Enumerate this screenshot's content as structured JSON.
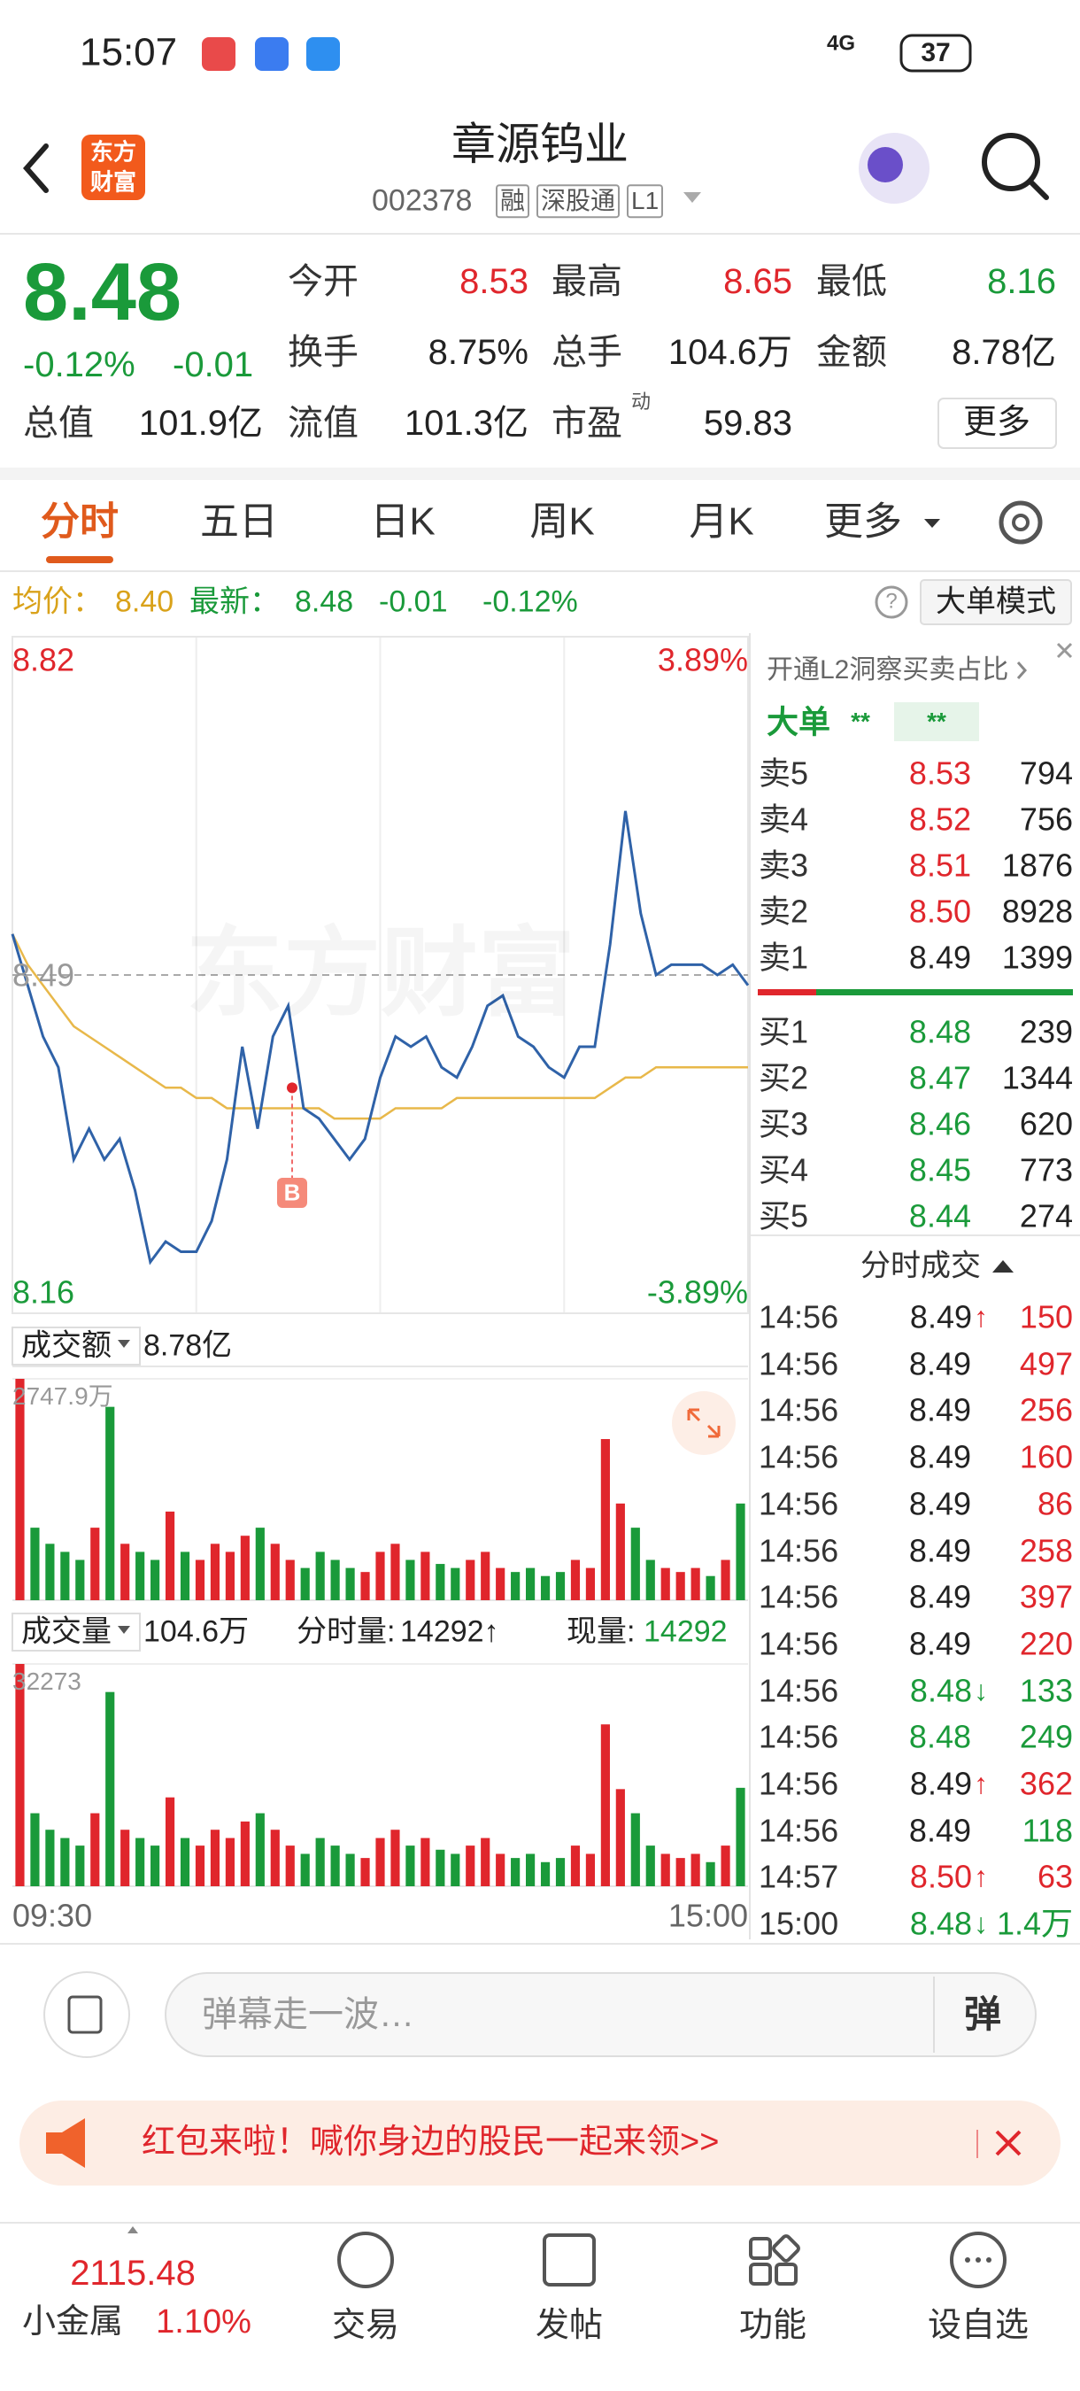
{
  "status": {
    "time": "15:07",
    "network": "4G",
    "battery": "37"
  },
  "header": {
    "logo": [
      "东方",
      "财富"
    ],
    "title": "章源钨业",
    "code": "002378",
    "tags": [
      "融",
      "深股通",
      "L1"
    ]
  },
  "quote": {
    "price": "8.48",
    "change_pct": "-0.12%",
    "change": "-0.01",
    "fields": [
      [
        {
          "label": "今开",
          "value": "8.53",
          "color": "#e0262c"
        },
        {
          "label": "最高",
          "value": "8.65",
          "color": "#e0262c"
        },
        {
          "label": "最低",
          "value": "8.16",
          "color": "#1a9a3a"
        }
      ],
      [
        {
          "label": "换手",
          "value": "8.75%"
        },
        {
          "label": "总手",
          "value": "104.6万"
        },
        {
          "label": "金额",
          "value": "8.78亿"
        }
      ],
      [
        {
          "label": "总值",
          "value": "101.9亿"
        },
        {
          "label": "流值",
          "value": "101.3亿"
        },
        {
          "label": "市盈",
          "sup": "动",
          "value": "59.83"
        }
      ]
    ],
    "more": "更多"
  },
  "tabs": {
    "items": [
      "分时",
      "五日",
      "日K",
      "周K",
      "月K",
      "更多"
    ],
    "active": 0
  },
  "info": {
    "avg_label": "均价：",
    "avg": "8.40",
    "last_label": "最新：",
    "last": "8.48",
    "change": "-0.01",
    "change_pct": "-0.12%",
    "help": "?",
    "mode": "大单模式"
  },
  "chart_data": [
    {
      "type": "line",
      "watermark": "东方财富",
      "ylim": [
        8.16,
        8.82
      ],
      "yticks": [
        8.82,
        8.49,
        8.16
      ],
      "y2lim": [
        -3.89,
        3.89
      ],
      "y2ticks": [
        {
          "value": 3.89,
          "label": "3.89%"
        },
        {
          "value": -3.89,
          "label": "-3.89%"
        }
      ],
      "series": [
        {
          "color": "#2f62a8",
          "values": [
            8.53,
            8.48,
            8.43,
            8.4,
            8.31,
            8.34,
            8.31,
            8.33,
            8.28,
            8.21,
            8.23,
            8.22,
            8.22,
            8.25,
            8.31,
            8.42,
            8.34,
            8.43,
            8.46,
            8.36,
            8.35,
            8.33,
            8.31,
            8.33,
            8.39,
            8.43,
            8.42,
            8.43,
            8.4,
            8.39,
            8.42,
            8.46,
            8.47,
            8.43,
            8.42,
            8.4,
            8.39,
            8.42,
            8.42,
            8.52,
            8.65,
            8.55,
            8.49,
            8.5,
            8.5,
            8.5,
            8.49,
            8.5,
            8.48
          ]
        },
        {
          "color": "#e8b84a",
          "values": [
            8.53,
            8.5,
            8.48,
            8.46,
            8.44,
            8.43,
            8.42,
            8.41,
            8.4,
            8.39,
            8.38,
            8.38,
            8.37,
            8.37,
            8.36,
            8.36,
            8.36,
            8.36,
            8.36,
            8.36,
            8.36,
            8.35,
            8.35,
            8.35,
            8.35,
            8.36,
            8.36,
            8.36,
            8.36,
            8.37,
            8.37,
            8.37,
            8.37,
            8.37,
            8.37,
            8.37,
            8.37,
            8.37,
            8.37,
            8.38,
            8.39,
            8.39,
            8.4,
            8.4,
            8.4,
            8.4,
            8.4,
            8.4,
            8.4
          ]
        }
      ],
      "annotations": [
        {
          "text": "B",
          "value": 8.38
        }
      ]
    },
    {
      "type": "bar",
      "title": "成交额",
      "total": "8.78亿",
      "up_color": "#e0262c",
      "down_color": "#1a9a3a",
      "ylim": [
        0,
        2747.9
      ],
      "yticks": [
        {
          "value": 2747.9,
          "label": "2747.9万"
        }
      ],
      "values": [
        2747.9,
        900,
        700,
        600,
        500,
        900,
        2400,
        700,
        600,
        500,
        1100,
        600,
        500,
        700,
        600,
        800,
        900,
        700,
        500,
        400,
        600,
        500,
        400,
        350,
        600,
        700,
        500,
        600,
        450,
        400,
        500,
        600,
        400,
        350,
        400,
        300,
        350,
        500,
        400,
        2000,
        1200,
        900,
        500,
        400,
        350,
        400,
        300,
        500,
        1200
      ]
    },
    {
      "type": "bar",
      "title": "成交量",
      "total": "104.6万",
      "minute_volume_label": "分时量:",
      "minute_volume": "14292↑",
      "current_label": "现量:",
      "current": "14292",
      "up_color": "#e0262c",
      "down_color": "#1a9a3a",
      "ylim": [
        0,
        32273
      ],
      "yticks": [
        32273
      ],
      "values": [
        32273,
        10600,
        8200,
        7000,
        5900,
        10600,
        28200,
        8200,
        7000,
        5900,
        12900,
        7000,
        5900,
        8200,
        7000,
        9400,
        10600,
        8200,
        5900,
        4700,
        7000,
        5900,
        4700,
        4100,
        7000,
        8200,
        5900,
        7000,
        5300,
        4700,
        5900,
        7000,
        4700,
        4100,
        4700,
        3500,
        4100,
        5900,
        4700,
        23500,
        14100,
        10600,
        5900,
        4700,
        4100,
        4700,
        3500,
        5900,
        14292
      ],
      "x_labels": [
        "09:30",
        "15:00"
      ]
    }
  ],
  "orderbook": {
    "title": "开通L2洞察买卖占比",
    "big_order": "大单",
    "stars": [
      "**",
      "**"
    ],
    "asks": [
      {
        "label": "卖5",
        "price": "8.53",
        "volume": "794"
      },
      {
        "label": "卖4",
        "price": "8.52",
        "volume": "756"
      },
      {
        "label": "卖3",
        "price": "8.51",
        "volume": "1876"
      },
      {
        "label": "卖2",
        "price": "8.50",
        "volume": "8928"
      },
      {
        "label": "卖1",
        "price": "8.49",
        "volume": "1399"
      }
    ],
    "bids": [
      {
        "label": "买1",
        "price": "8.48",
        "volume": "239"
      },
      {
        "label": "买2",
        "price": "8.47",
        "volume": "1344"
      },
      {
        "label": "买3",
        "price": "8.46",
        "volume": "620"
      },
      {
        "label": "买4",
        "price": "8.45",
        "volume": "773"
      },
      {
        "label": "买5",
        "price": "8.44",
        "volume": "274"
      }
    ],
    "trades_title": "分时成交",
    "trades": [
      {
        "time": "14:56",
        "price": "8.49",
        "arrow": "↑",
        "volume": "150",
        "color": "#e0262c"
      },
      {
        "time": "14:56",
        "price": "8.49",
        "volume": "497",
        "color": "#e0262c"
      },
      {
        "time": "14:56",
        "price": "8.49",
        "volume": "256",
        "color": "#e0262c"
      },
      {
        "time": "14:56",
        "price": "8.49",
        "volume": "160",
        "color": "#e0262c"
      },
      {
        "time": "14:56",
        "price": "8.49",
        "volume": "86",
        "color": "#e0262c"
      },
      {
        "time": "14:56",
        "price": "8.49",
        "volume": "258",
        "color": "#e0262c"
      },
      {
        "time": "14:56",
        "price": "8.49",
        "volume": "397",
        "color": "#e0262c"
      },
      {
        "time": "14:56",
        "price": "8.49",
        "volume": "220",
        "color": "#e0262c"
      },
      {
        "time": "14:56",
        "price": "8.48",
        "arrow": "↓",
        "volume": "133",
        "color": "#1a9a3a"
      },
      {
        "time": "14:56",
        "price": "8.48",
        "volume": "249",
        "color": "#1a9a3a"
      },
      {
        "time": "14:56",
        "price": "8.49",
        "arrow": "↑",
        "volume": "362",
        "color": "#e0262c"
      },
      {
        "time": "14:56",
        "price": "8.49",
        "volume": "118",
        "color": "#1a9a3a"
      },
      {
        "time": "14:57",
        "price": "8.50",
        "arrow": "↑",
        "volume": "63",
        "color": "#e0262c"
      },
      {
        "time": "15:00",
        "price": "8.48",
        "arrow": "↓",
        "volume": "1.4万",
        "color": "#1a9a3a"
      }
    ]
  },
  "comment": {
    "placeholder": "弹幕走一波…",
    "button": "弹"
  },
  "banner": {
    "text": "红包来啦！喊你身边的股民一起来领>>"
  },
  "nav": {
    "index": {
      "value": "2115.48",
      "name": "小金属",
      "change": "1.10%"
    },
    "items": [
      "交易",
      "发帖",
      "功能",
      "设自选"
    ]
  }
}
